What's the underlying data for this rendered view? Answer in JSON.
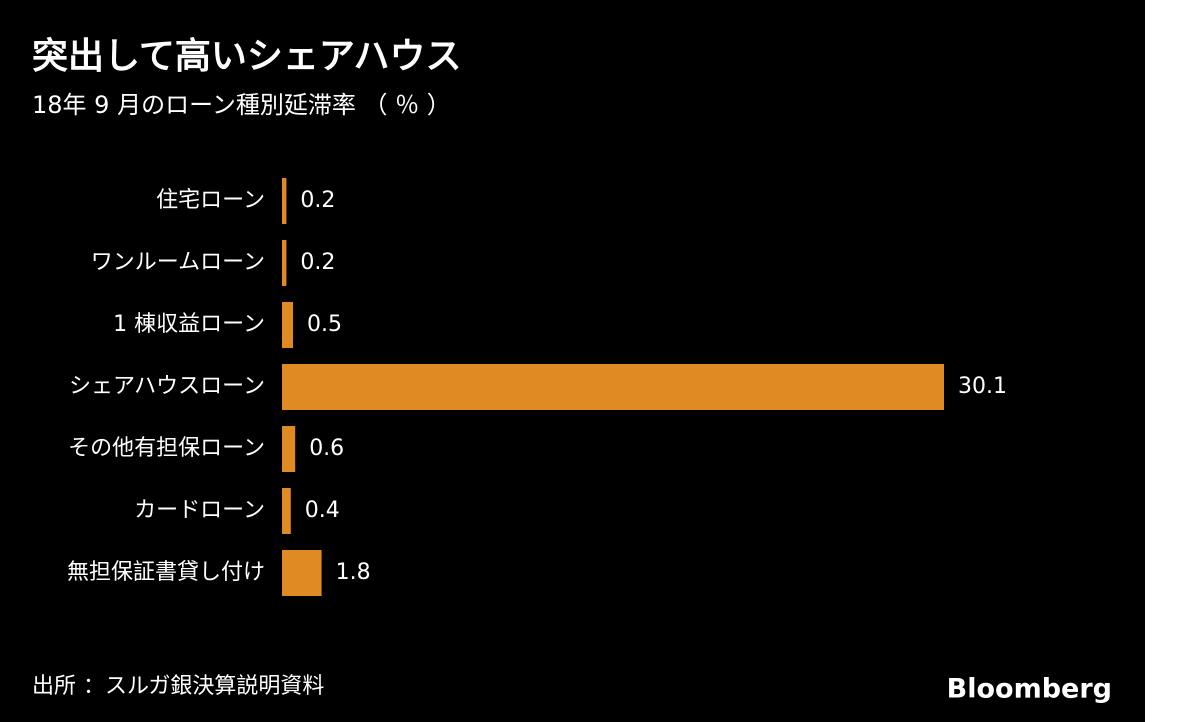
{
  "chart_data": {
    "type": "bar",
    "orientation": "horizontal",
    "title": "突出して高いシェアハウス",
    "subtitle": "18年 9 月のローン種別延滞率 （ ％ ）",
    "categories": [
      "住宅ローン",
      "ワンルームローン",
      "1 棟収益ローン",
      "シェアハウスローン",
      "その他有担保ローン",
      "カードローン",
      "無担保証書貸し付け"
    ],
    "values": [
      0.2,
      0.2,
      0.5,
      30.1,
      0.6,
      0.4,
      1.8
    ],
    "color": "#e08a24",
    "source": "出所 ：スルガ銀決算説明資料",
    "logo": "Bloomberg"
  }
}
